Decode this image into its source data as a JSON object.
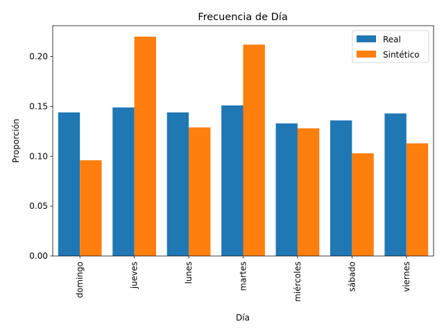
{
  "chart_data": {
    "type": "bar",
    "title": "Frecuencia de Día",
    "xlabel": "Día",
    "ylabel": "Proporción",
    "categories": [
      "domingo",
      "jueves",
      "lunes",
      "martes",
      "miércoles",
      "sábado",
      "viernes"
    ],
    "series": [
      {
        "name": "Real",
        "color": "#1f77b4",
        "values": [
          0.144,
          0.149,
          0.144,
          0.151,
          0.133,
          0.136,
          0.143
        ]
      },
      {
        "name": "Sintético",
        "color": "#ff7f0e",
        "values": [
          0.096,
          0.22,
          0.129,
          0.212,
          0.128,
          0.103,
          0.113
        ]
      }
    ],
    "ylim": [
      0,
      0.231
    ],
    "yticks": [
      "0.00",
      "0.05",
      "0.10",
      "0.15",
      "0.20"
    ],
    "legend": "top-right",
    "grid": false
  }
}
